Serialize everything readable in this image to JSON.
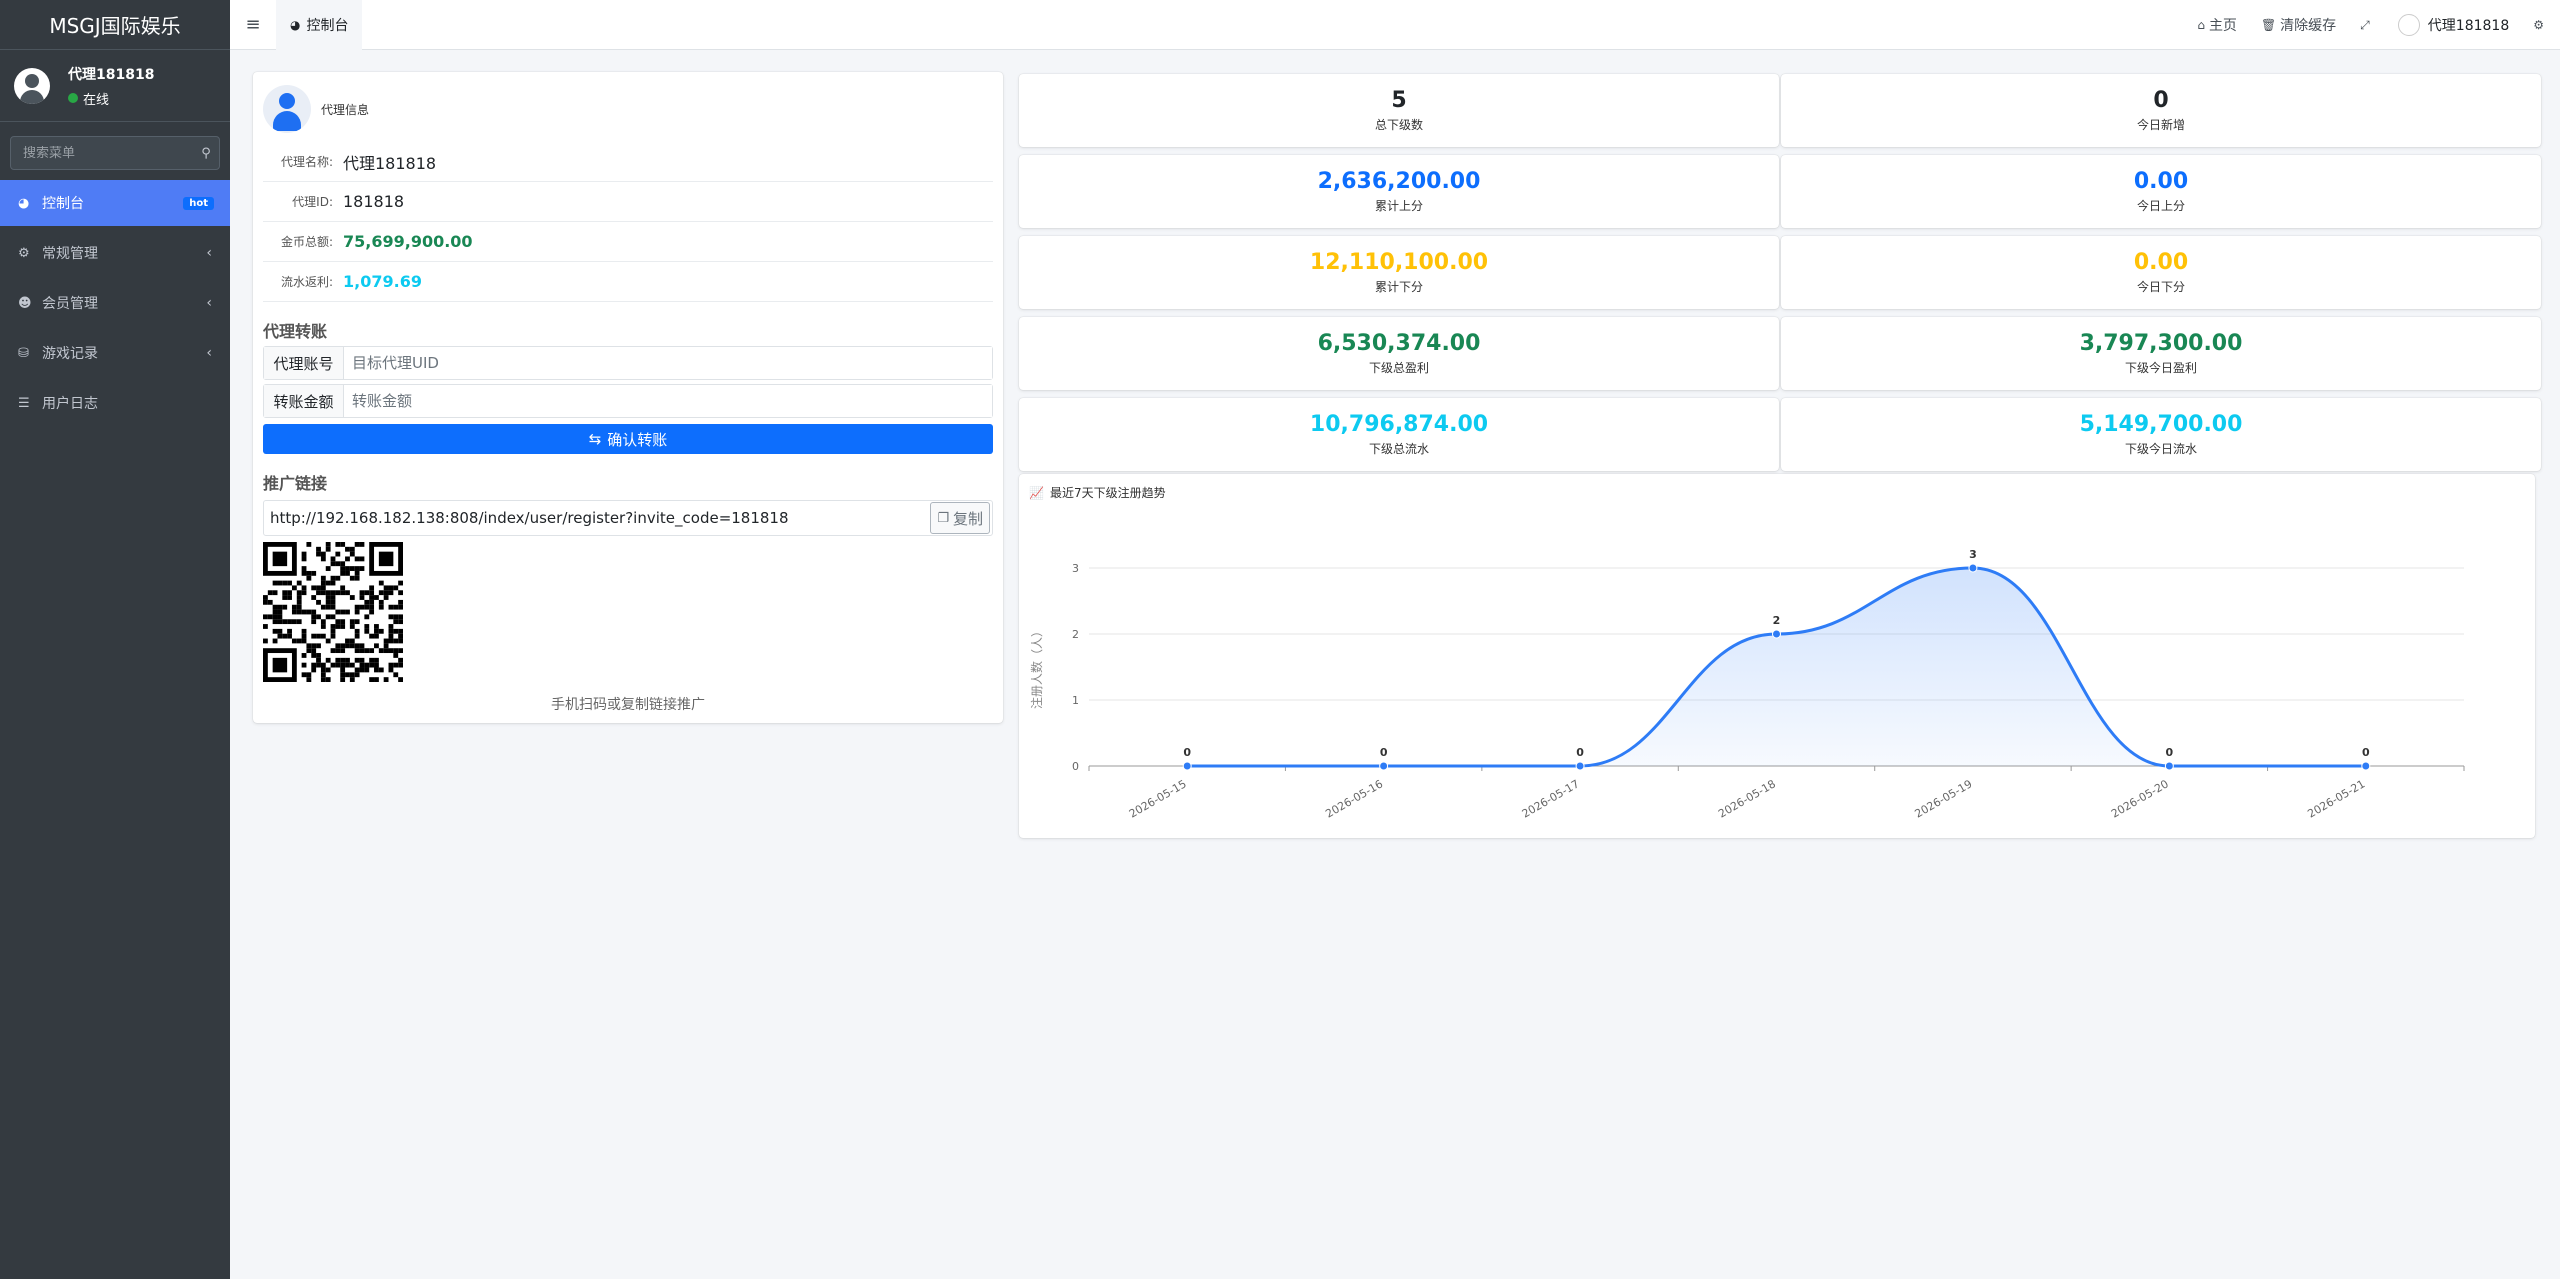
{
  "brand": "MSGJ国际娱乐",
  "sidebar": {
    "user_name": "代理181818",
    "user_status": "在线",
    "search_placeholder": "搜索菜单",
    "items": [
      {
        "label": "控制台",
        "badge": "hot",
        "icon": "dashboard-icon",
        "active": true
      },
      {
        "label": "常规管理",
        "icon": "cogs-icon"
      },
      {
        "label": "会员管理",
        "icon": "user-circle-icon"
      },
      {
        "label": "游戏记录",
        "icon": "gamepad-icon"
      },
      {
        "label": "用户日志",
        "icon": "database-icon"
      }
    ]
  },
  "topbar": {
    "tab_label": "控制台",
    "home_label": "主页",
    "clear_cache_label": "清除缓存",
    "user_label": "代理181818"
  },
  "agent": {
    "title": "代理信息",
    "name_label": "代理名称:",
    "name_value": "代理181818",
    "id_label": "代理ID:",
    "id_value": "181818",
    "coins_label": "金币总额:",
    "coins_value": "75,699,900.00",
    "rebate_label": "流水返利:",
    "rebate_value": "1,079.69"
  },
  "transfer": {
    "title": "代理转账",
    "account_label": "代理账号",
    "account_placeholder": "目标代理UID",
    "amount_label": "转账金额",
    "amount_placeholder": "转账金额",
    "confirm_label": "确认转账"
  },
  "promo": {
    "title": "推广链接",
    "link": "http://192.168.182.138:808/index/user/register?invite_code=181818",
    "copy_label": "复制",
    "caption": "手机扫码或复制链接推广"
  },
  "stats": [
    {
      "value": "5",
      "label": "总下级数",
      "color": "#212529"
    },
    {
      "value": "0",
      "label": "今日新增",
      "color": "#212529"
    },
    {
      "value": "2,636,200.00",
      "label": "累计上分",
      "color": "#0d6efd"
    },
    {
      "value": "0.00",
      "label": "今日上分",
      "color": "#0d6efd"
    },
    {
      "value": "12,110,100.00",
      "label": "累计下分",
      "color": "#ffc107"
    },
    {
      "value": "0.00",
      "label": "今日下分",
      "color": "#ffc107"
    },
    {
      "value": "6,530,374.00",
      "label": "下级总盈利",
      "color": "#198754"
    },
    {
      "value": "3,797,300.00",
      "label": "下级今日盈利",
      "color": "#198754"
    },
    {
      "value": "10,796,874.00",
      "label": "下级总流水",
      "color": "#0dcaf0"
    },
    {
      "value": "5,149,700.00",
      "label": "下级今日流水",
      "color": "#0dcaf0"
    }
  ],
  "chart_title": "最近7天下级注册趋势",
  "chart_data": {
    "type": "line",
    "title": "最近7天下级注册趋势",
    "x": [
      "2026-05-15",
      "2026-05-16",
      "2026-05-17",
      "2026-05-18",
      "2026-05-19",
      "2026-05-20",
      "2026-05-21"
    ],
    "series": [
      {
        "values": [
          0,
          0,
          0,
          2,
          3,
          0,
          0
        ]
      }
    ],
    "xlabel": "",
    "ylabel": "注册人数（人）",
    "ylim": [
      0,
      3
    ],
    "yticks": [
      0,
      1,
      2,
      3
    ],
    "grid": true,
    "smooth": true,
    "area_fill": true,
    "line_color": "#2e7cf6"
  }
}
